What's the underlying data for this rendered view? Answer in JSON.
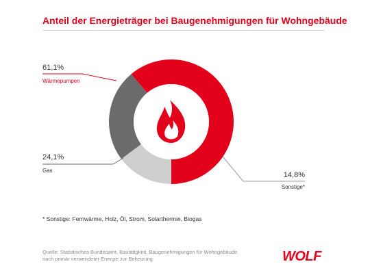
{
  "chart_data": {
    "type": "pie",
    "title": "Anteil der Energieträger bei Baugenehmigungen für Wohngebäude",
    "slices": [
      {
        "label": "Wärmepumpen",
        "value": 61.1,
        "display": "61,1%",
        "color": "#e3001b"
      },
      {
        "label": "Gas",
        "value": 24.1,
        "display": "24,1%",
        "color": "#6b6b6b"
      },
      {
        "label": "Sonstige*",
        "value": 14.8,
        "display": "14,8%",
        "color": "#cfcfcf"
      }
    ],
    "center_icon": "flame-icon",
    "footnote": "* Sonstige: Fernwärme, Holz, Öl, Strom, Solarthermie, Biogas",
    "source": "Quelle: Statistisches Bundesamt, Bautätigkeit, Baugenehmigungen für Wohngebäude nach primär verwendeter Energie zur Beheizung"
  },
  "brand": {
    "logo_text": "WOLF",
    "color": "#e3001b"
  }
}
